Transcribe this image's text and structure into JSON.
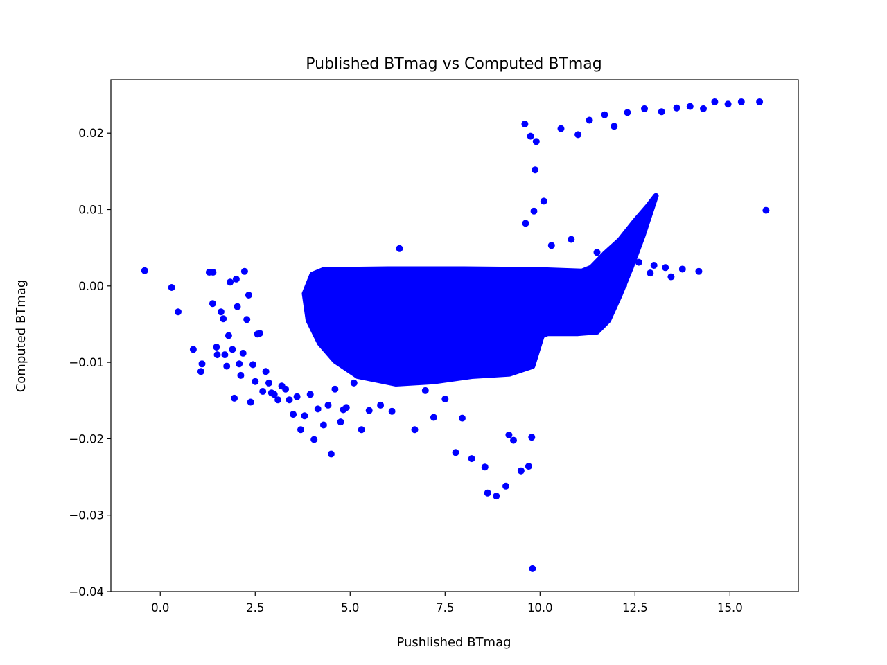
{
  "chart_data": {
    "type": "scatter",
    "title": "Published BTmag vs Computed BTmag",
    "xlabel": "Pushlished BTmag",
    "ylabel": "Computed BTmag",
    "xlim": [
      -1.3,
      16.8
    ],
    "ylim": [
      -0.04,
      0.027
    ],
    "xticks": [
      0.0,
      2.5,
      5.0,
      7.5,
      10.0,
      12.5,
      15.0
    ],
    "xtick_labels": [
      "0.0",
      "2.5",
      "5.0",
      "7.5",
      "10.0",
      "12.5",
      "15.0"
    ],
    "yticks": [
      -0.04,
      -0.03,
      -0.02,
      -0.01,
      0.0,
      0.01,
      0.02
    ],
    "ytick_labels": [
      "−0.04",
      "−0.03",
      "−0.02",
      "−0.01",
      "0.00",
      "0.01",
      "0.02"
    ],
    "grid": false,
    "legend": "none",
    "marker_color": "#0000ff",
    "series": [
      {
        "x": [
          -0.41,
          0.3,
          0.47,
          0.87,
          1.07,
          1.1,
          1.29,
          1.38,
          1.39,
          1.48,
          1.5,
          1.6,
          1.66,
          1.7,
          1.75,
          1.8,
          1.84,
          1.9,
          1.95,
          2.0,
          2.03,
          2.08,
          2.12,
          2.18,
          2.22,
          2.28,
          2.33,
          2.38,
          2.44,
          2.5,
          2.56,
          2.62,
          2.7,
          2.78,
          2.86,
          2.93,
          3.0,
          3.1,
          3.2,
          3.3,
          3.4,
          3.5,
          3.6,
          3.7,
          3.8,
          3.95,
          4.05,
          4.15,
          4.3,
          4.42,
          4.5,
          4.6,
          4.75,
          4.82,
          4.9,
          5.1,
          5.3,
          5.5,
          5.8,
          6.1,
          6.3,
          6.7,
          6.98,
          7.2,
          7.5,
          7.78,
          7.95,
          8.2,
          8.55,
          8.62,
          8.85,
          9.1,
          9.18,
          9.3,
          9.5,
          9.7,
          9.78,
          9.8,
          9.84,
          9.87,
          9.9,
          9.6,
          9.75,
          10.1,
          10.55,
          11.0,
          11.3,
          11.7,
          11.95,
          12.3,
          12.75,
          13.2,
          13.6,
          13.95,
          14.3,
          14.6,
          14.95,
          15.3,
          15.78,
          15.95,
          9.62,
          10.3,
          10.82,
          11.5,
          11.85,
          12.12,
          12.6,
          13.0,
          13.3,
          13.75,
          14.18,
          12.9,
          13.45,
          11.2,
          10.7,
          12.2
        ],
        "y": [
          0.002,
          -0.0002,
          -0.0034,
          -0.0083,
          -0.0112,
          -0.0102,
          0.0018,
          -0.0023,
          0.0018,
          -0.008,
          -0.009,
          -0.0034,
          -0.0043,
          -0.009,
          -0.0105,
          -0.0065,
          0.0005,
          -0.0083,
          -0.0147,
          0.0009,
          -0.0027,
          -0.0102,
          -0.0117,
          -0.0088,
          0.0019,
          -0.0044,
          -0.0012,
          -0.0152,
          -0.0103,
          -0.0125,
          -0.0063,
          -0.0062,
          -0.0138,
          -0.0112,
          -0.0127,
          -0.014,
          -0.0142,
          -0.0149,
          -0.0131,
          -0.0135,
          -0.0149,
          -0.0168,
          -0.0145,
          -0.0188,
          -0.017,
          -0.0142,
          -0.0201,
          -0.0161,
          -0.0182,
          -0.0156,
          -0.022,
          -0.0135,
          -0.0178,
          -0.0162,
          -0.0159,
          -0.0127,
          -0.0188,
          -0.0163,
          -0.0156,
          -0.0164,
          0.0049,
          -0.0188,
          -0.0137,
          -0.0172,
          -0.0148,
          -0.0218,
          -0.0173,
          -0.0226,
          -0.0237,
          -0.0271,
          -0.0275,
          -0.0262,
          -0.0195,
          -0.0202,
          -0.0242,
          -0.0236,
          -0.0198,
          -0.037,
          0.0098,
          0.0152,
          0.0189,
          0.0212,
          0.0196,
          0.0111,
          0.0206,
          0.0198,
          0.0217,
          0.0224,
          0.0209,
          0.0227,
          0.0232,
          0.0228,
          0.0233,
          0.0235,
          0.0232,
          0.0241,
          0.0238,
          0.0241,
          0.0241,
          0.0099,
          0.0082,
          0.0053,
          0.0061,
          0.0044,
          0.0037,
          0.0033,
          0.0031,
          0.0027,
          0.0024,
          0.0022,
          0.0019,
          0.0017,
          0.0012,
          0.0008,
          0.0004,
          0.0001
        ],
        "style": "scatter-points"
      }
    ]
  }
}
